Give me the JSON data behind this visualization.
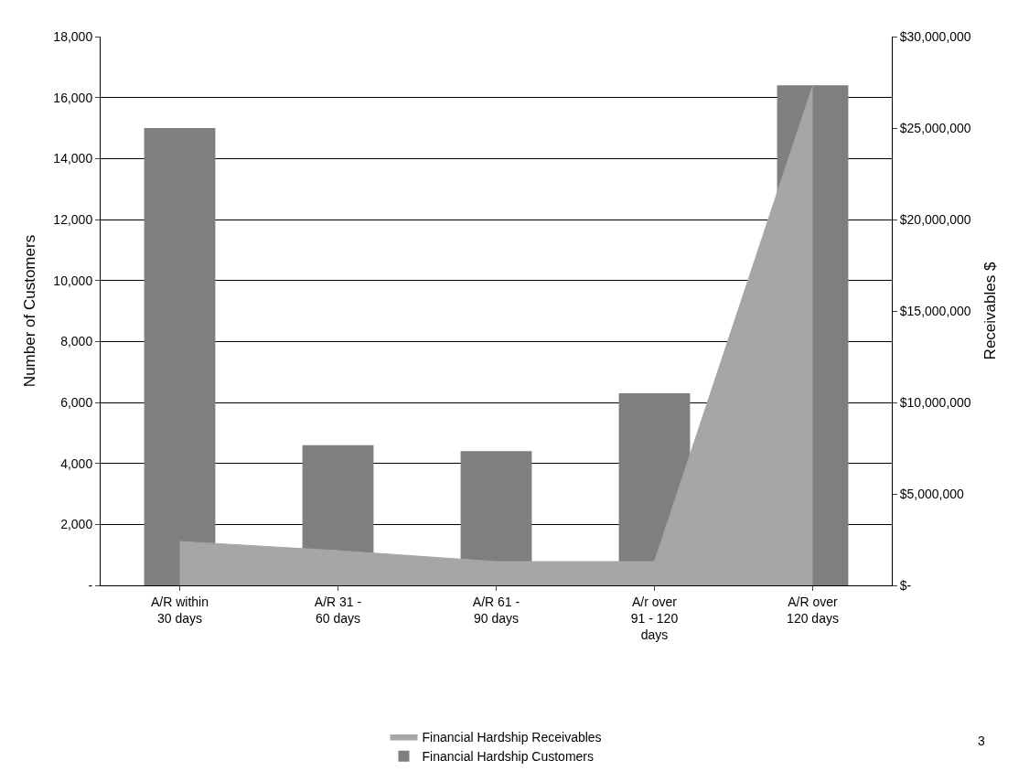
{
  "chart_data": {
    "type": "bar",
    "ylabel": "Number of Customers",
    "y2label": "Receivables $",
    "categories": [
      "A/R within 30 days",
      "A/R 31 - 60 days",
      "A/R 61 - 90 days",
      "A/r over 91 - 120 days",
      "A/R over 120 days"
    ],
    "series": [
      {
        "name": "Financial Hardship Receivables",
        "type": "area",
        "axis": "y2",
        "color": "#a6a6a6",
        "values": [
          2400000,
          1900000,
          1300000,
          1300000,
          27300000
        ]
      },
      {
        "name": "Financial Hardship Customers",
        "color": "#7f7f7f",
        "values": [
          15000,
          4600,
          4400,
          6300,
          16400
        ]
      }
    ],
    "ylim": [
      0,
      18000
    ],
    "yticks": [
      {
        "value": 0,
        "label": "-"
      },
      {
        "value": 2000,
        "label": "2,000"
      },
      {
        "value": 4000,
        "label": "4,000"
      },
      {
        "value": 6000,
        "label": "6,000"
      },
      {
        "value": 8000,
        "label": "8,000"
      },
      {
        "value": 10000,
        "label": "10,000"
      },
      {
        "value": 12000,
        "label": "12,000"
      },
      {
        "value": 14000,
        "label": "14,000"
      },
      {
        "value": 16000,
        "label": "16,000"
      },
      {
        "value": 18000,
        "label": "18,000"
      }
    ],
    "y2lim": [
      0,
      30000000
    ],
    "y2ticks": [
      {
        "value": 0,
        "label": "$-"
      },
      {
        "value": 5000000,
        "label": "$5,000,000"
      },
      {
        "value": 10000000,
        "label": "$10,000,000"
      },
      {
        "value": 15000000,
        "label": "$15,000,000"
      },
      {
        "value": 20000000,
        "label": "$20,000,000"
      },
      {
        "value": 25000000,
        "label": "$25,000,000"
      },
      {
        "value": 30000000,
        "label": "$30,000,000"
      }
    ],
    "grid": "y",
    "legend": "bottom",
    "annotations": [
      "3"
    ]
  }
}
